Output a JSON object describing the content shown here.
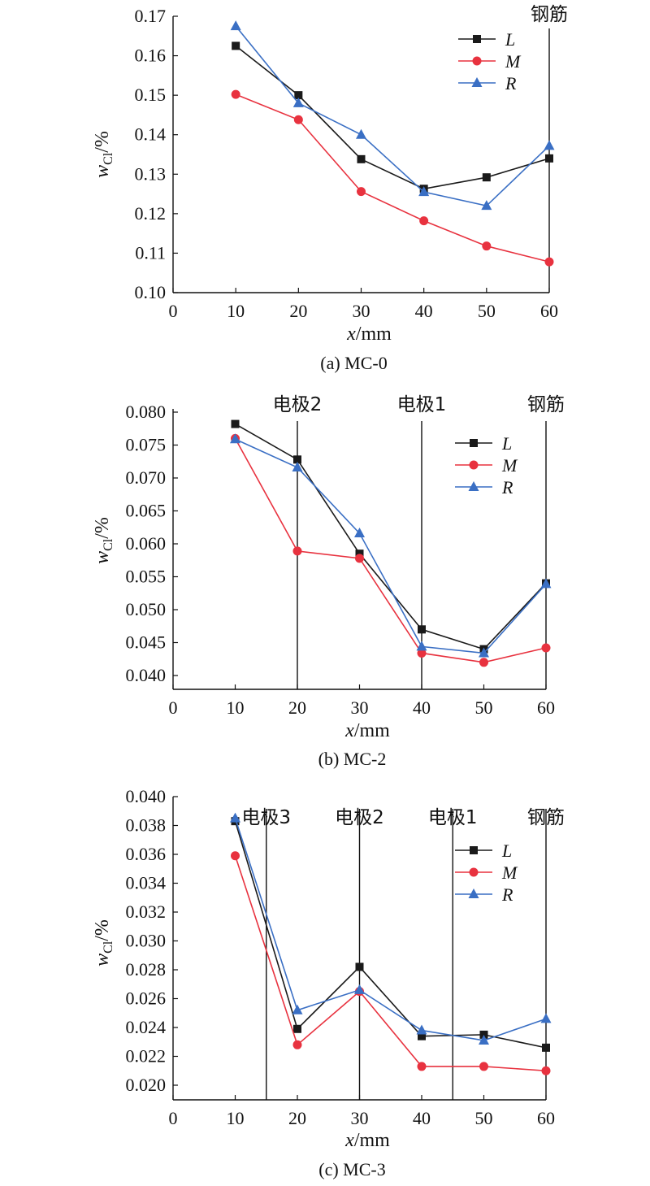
{
  "colors": {
    "L": "#1a1a1a",
    "M": "#e8323f",
    "R": "#3a6fc4"
  },
  "chart_data": [
    {
      "type": "line",
      "caption": "(a) MC-0",
      "xlabel": "x/mm",
      "ylabel": "wCl/%",
      "xticks": [
        "0",
        "10",
        "20",
        "30",
        "40",
        "50",
        "60"
      ],
      "yticks": [
        "0.10",
        "0.11",
        "0.12",
        "0.13",
        "0.14",
        "0.15",
        "0.16",
        "0.17"
      ],
      "xlim": [
        0,
        60
      ],
      "ylim": [
        0.1,
        0.17
      ],
      "vlines": [
        {
          "x": 60,
          "label": "钢筋"
        }
      ],
      "legend": [
        "L",
        "M",
        "R"
      ],
      "x": [
        10,
        20,
        30,
        40,
        50,
        60
      ],
      "series": [
        {
          "name": "L",
          "marker": "square",
          "values": [
            0.1625,
            0.15,
            0.1338,
            0.1263,
            0.1292,
            0.134
          ]
        },
        {
          "name": "M",
          "marker": "circle",
          "values": [
            0.1502,
            0.1438,
            0.1256,
            0.1182,
            0.1118,
            0.1078
          ]
        },
        {
          "name": "R",
          "marker": "triangle",
          "values": [
            0.1675,
            0.148,
            0.14,
            0.1255,
            0.122,
            0.1372
          ]
        }
      ]
    },
    {
      "type": "line",
      "caption": "(b) MC-2",
      "xlabel": "x/mm",
      "ylabel": "wCl/%",
      "xticks": [
        "0",
        "10",
        "20",
        "30",
        "40",
        "50",
        "60"
      ],
      "yticks": [
        "0.040",
        "0.045",
        "0.050",
        "0.055",
        "0.060",
        "0.065",
        "0.070",
        "0.075",
        "0.080"
      ],
      "xlim": [
        0,
        60
      ],
      "ylim": [
        0.038,
        0.08
      ],
      "vlines": [
        {
          "x": 20,
          "label": "电极2"
        },
        {
          "x": 40,
          "label": "电极1"
        },
        {
          "x": 60,
          "label": "钢筋"
        }
      ],
      "legend": [
        "L",
        "M",
        "R"
      ],
      "x": [
        10,
        20,
        30,
        40,
        50,
        60
      ],
      "series": [
        {
          "name": "L",
          "marker": "square",
          "values": [
            0.0782,
            0.0728,
            0.0585,
            0.047,
            0.044,
            0.054
          ]
        },
        {
          "name": "M",
          "marker": "circle",
          "values": [
            0.076,
            0.0589,
            0.0578,
            0.0434,
            0.042,
            0.0442
          ]
        },
        {
          "name": "R",
          "marker": "triangle",
          "values": [
            0.0759,
            0.0716,
            0.0616,
            0.0444,
            0.0434,
            0.0539
          ]
        }
      ]
    },
    {
      "type": "line",
      "caption": "(c) MC-3",
      "xlabel": "x/mm",
      "ylabel": "wCl/%",
      "xticks": [
        "0",
        "10",
        "20",
        "30",
        "40",
        "50",
        "60"
      ],
      "yticks": [
        "0.020",
        "0.022",
        "0.024",
        "0.026",
        "0.028",
        "0.030",
        "0.032",
        "0.034",
        "0.036",
        "0.038",
        "0.040"
      ],
      "xlim": [
        0,
        60
      ],
      "ylim": [
        0.019,
        0.04
      ],
      "vlines": [
        {
          "x": 15,
          "label": "电极3"
        },
        {
          "x": 30,
          "label": "电极2"
        },
        {
          "x": 45,
          "label": "电极1"
        },
        {
          "x": 60,
          "label": "钢筋"
        }
      ],
      "legend": [
        "L",
        "M",
        "R"
      ],
      "x": [
        10,
        20,
        30,
        40,
        50,
        60
      ],
      "series": [
        {
          "name": "L",
          "marker": "square",
          "values": [
            0.0383,
            0.0239,
            0.0282,
            0.0234,
            0.0235,
            0.0226
          ]
        },
        {
          "name": "M",
          "marker": "circle",
          "values": [
            0.0359,
            0.0228,
            0.0265,
            0.0213,
            0.0213,
            0.021
          ]
        },
        {
          "name": "R",
          "marker": "triangle",
          "values": [
            0.0385,
            0.0252,
            0.0266,
            0.0238,
            0.0231,
            0.0246
          ]
        }
      ]
    }
  ]
}
